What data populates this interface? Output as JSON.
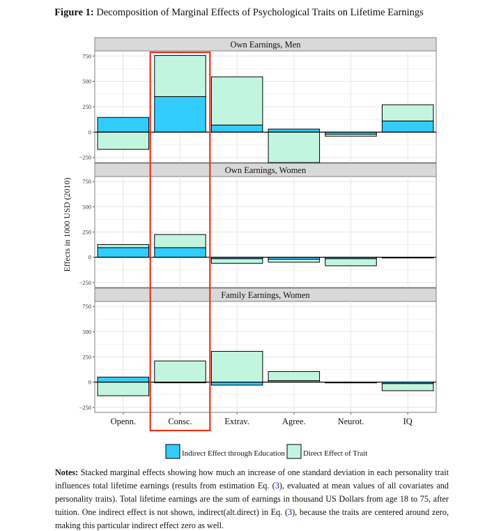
{
  "figure": {
    "label": "Figure 1:",
    "title": "Decomposition of Marginal Effects of Psychological Traits on Lifetime Earnings"
  },
  "notes": {
    "label": "Notes:",
    "text_1": " Stacked marginal effects showing how much an increase of one standard deviation in each personality trait influences total lifetime earnings (results from estimation Eq. (",
    "ref_1": "3",
    "text_2": "), evaluated at mean values of all covariates and personality traits). Total lifetime earnings are the sum of earnings in thousand US Dollars from age 18 to 75, after tuition. One indirect effect is not shown, indirect(alt.direct) in Eq. (",
    "ref_2": "3",
    "text_3": "), because the traits are centered around zero, making this particular indirect effect zero as well."
  },
  "colors": {
    "indirect": "#33ccff",
    "direct": "#c2f5df",
    "strip": "#d9d9d9",
    "grid": "#e5e5e5",
    "highlight": "#e8321c"
  },
  "chart_data": {
    "type": "bar",
    "stacked": true,
    "ylabel": "Effects in 1000 USD (2010)",
    "xlabel": "",
    "categories": [
      "Openn.",
      "Consc.",
      "Extrav.",
      "Agree.",
      "Neurot.",
      "IQ"
    ],
    "yticks": [
      -250,
      0,
      250,
      500,
      750
    ],
    "ytick_labels": [
      "−250",
      "0",
      "250",
      "500",
      "750"
    ],
    "ylim": [
      -300,
      800
    ],
    "grid": true,
    "legend": {
      "position": "bottom",
      "entries": [
        "Indirect Effect through Education",
        "Direct Effect of Trait"
      ]
    },
    "highlight_category": "Consc.",
    "panels": [
      {
        "title": "Own Earnings, Men",
        "series": [
          {
            "name": "Indirect Effect through Education",
            "values": [
              145,
              350,
              70,
              30,
              -20,
              110
            ]
          },
          {
            "name": "Direct Effect of Trait",
            "values": [
              -170,
              405,
              475,
              -300,
              -20,
              160
            ]
          }
        ]
      },
      {
        "title": "Own Earnings, Women",
        "series": [
          {
            "name": "Indirect Effect through Education",
            "values": [
              95,
              95,
              -15,
              -20,
              -15,
              -5
            ]
          },
          {
            "name": "Direct Effect of Trait",
            "values": [
              30,
              130,
              -45,
              -30,
              -70,
              0
            ]
          }
        ]
      },
      {
        "title": "Family Earnings, Women",
        "series": [
          {
            "name": "Indirect Effect through Education",
            "values": [
              50,
              -5,
              -30,
              15,
              -5,
              -15
            ]
          },
          {
            "name": "Direct Effect of Trait",
            "values": [
              -135,
              210,
              305,
              90,
              0,
              -70
            ]
          }
        ]
      }
    ]
  }
}
